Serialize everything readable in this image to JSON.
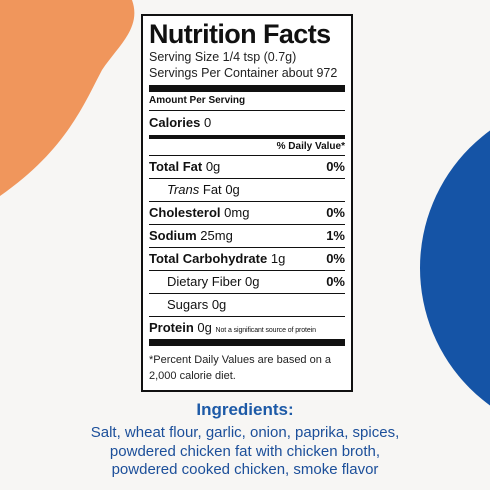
{
  "label": {
    "title": "Nutrition Facts",
    "serving_size": "Serving Size 1/4 tsp  (0.7g)",
    "servings_per_container": "Servings Per Container about 972",
    "amount_per_serving": "Amount Per Serving",
    "calories": {
      "label": "Calories",
      "amount": "0"
    },
    "daily_value_header": "% Daily Value*",
    "rows": [
      {
        "label": "Total Fat",
        "amount": "0g",
        "dv": "0%"
      },
      {
        "label_italic": "Trans",
        "label": "Fat",
        "amount": "0g"
      },
      {
        "label": "Cholesterol",
        "amount": "0mg",
        "dv": "0%"
      },
      {
        "label": "Sodium",
        "amount": "25mg",
        "dv": "1%"
      },
      {
        "label": "Total Carbohydrate",
        "amount": "1g",
        "dv": "0%"
      },
      {
        "label": "Dietary Fiber",
        "amount": "0g",
        "dv": "0%"
      },
      {
        "label": "Sugars",
        "amount": "0g"
      },
      {
        "label": "Protein",
        "amount": "0g",
        "note": "Not a significant source of protein"
      }
    ],
    "footnote": "*Percent Daily Values are based on a 2,000 calorie diet."
  },
  "ingredients": {
    "title": "Ingredients:",
    "lines": [
      "Salt, wheat flour, garlic, onion, paprika, spices,",
      "powdered chicken fat with chicken broth,",
      "powdered cooked chicken, smoke flavor"
    ]
  }
}
